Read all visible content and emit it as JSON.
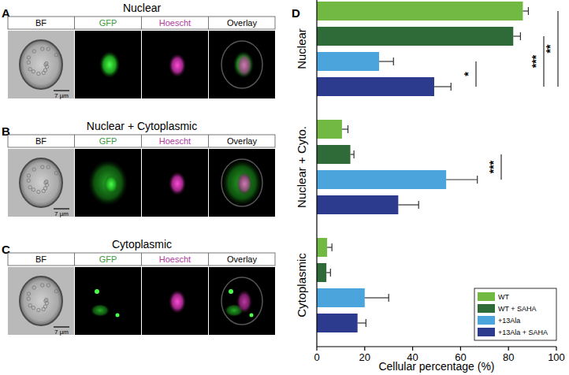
{
  "panels": [
    {
      "letter": "A",
      "title": "Nuclear",
      "channels": [
        "BF",
        "GFP",
        "Hoescht",
        "Overlay"
      ],
      "scale_bar": "7 µm"
    },
    {
      "letter": "B",
      "title": "Nuclear + Cytoplasmic",
      "channels": [
        "BF",
        "GFP",
        "Hoescht",
        "Overlay"
      ],
      "scale_bar": "7 µm"
    },
    {
      "letter": "C",
      "title": "Cytoplasmic",
      "channels": [
        "BF",
        "GFP",
        "Hoescht",
        "Overlay"
      ],
      "scale_bar": "7 µm"
    }
  ],
  "chart_panel_letter": "D",
  "chart_data": {
    "type": "bar",
    "orientation": "horizontal",
    "x_label": "Cellular percentage (%)",
    "categories": [
      "Nuclear",
      "Nuclear + Cyto.",
      "Cytoplasmic"
    ],
    "series": [
      {
        "name": "WT",
        "color": "#72b944",
        "values": [
          86,
          10.5,
          4.3
        ],
        "errors": [
          2.3,
          2.5,
          2
        ]
      },
      {
        "name": "WT + SAHA",
        "color": "#2f6b38",
        "values": [
          82,
          14,
          4
        ],
        "errors": [
          3,
          1.5,
          1.7
        ]
      },
      {
        "name": "+13Ala",
        "color": "#4ba5dc",
        "values": [
          26,
          54,
          20
        ],
        "errors": [
          6,
          13,
          10
        ]
      },
      {
        "name": "+13Ala + SAHA",
        "color": "#2c3b8e",
        "values": [
          49,
          34,
          17
        ],
        "errors": [
          7,
          8.5,
          3.5
        ]
      }
    ],
    "xlim": [
      0,
      100
    ],
    "xticks": [
      0,
      20,
      40,
      60,
      80,
      100
    ],
    "legend": "lower right",
    "annotations": [
      {
        "label": "*",
        "category": "Nuclear",
        "between": [
          "+13Ala",
          "+13Ala + SAHA"
        ]
      },
      {
        "label": "***",
        "category": "Nuclear",
        "between": [
          "WT + SAHA",
          "+13Ala + SAHA"
        ]
      },
      {
        "label": "**",
        "category": "Nuclear",
        "between": [
          "WT",
          "+13Ala + SAHA"
        ]
      },
      {
        "label": "***",
        "category": "Nuclear + Cyto.",
        "between": [
          "WT + SAHA",
          "+13Ala"
        ]
      }
    ]
  }
}
